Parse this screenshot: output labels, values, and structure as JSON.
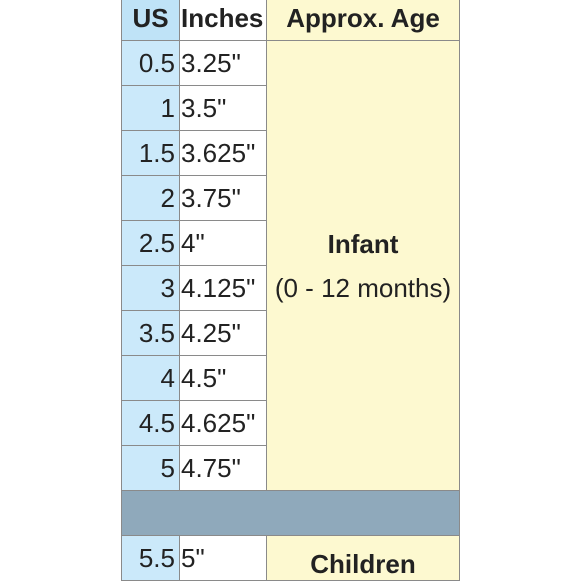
{
  "header": {
    "us": "US",
    "inches": "Inches",
    "age": "Approx. Age"
  },
  "infant_rows": [
    {
      "us": "0.5",
      "inches": "3.25\""
    },
    {
      "us": "1",
      "inches": "3.5\""
    },
    {
      "us": "1.5",
      "inches": "3.625\""
    },
    {
      "us": "2",
      "inches": "3.75\""
    },
    {
      "us": "2.5",
      "inches": "4\""
    },
    {
      "us": "3",
      "inches": "4.125\""
    },
    {
      "us": "3.5",
      "inches": "4.25\""
    },
    {
      "us": "4",
      "inches": "4.5\""
    },
    {
      "us": "4.5",
      "inches": "4.625\""
    },
    {
      "us": "5",
      "inches": "4.75\""
    }
  ],
  "infant_group": {
    "title": "Infant",
    "range": "(0 - 12 months)"
  },
  "children_rows": [
    {
      "us": "5.5",
      "inches": "5\""
    }
  ],
  "children_group": {
    "title": "Children"
  },
  "colors": {
    "us_column": "#cbe9fa",
    "age_column": "#fdf9d0",
    "separator": "#8fa9bb"
  }
}
